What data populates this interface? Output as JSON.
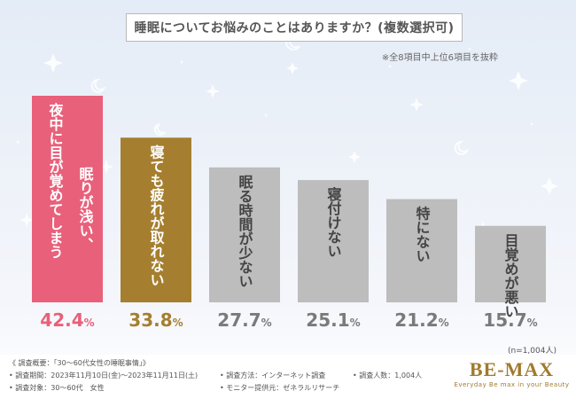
{
  "header": {
    "title": "睡眠についてお悩みのことはありますか？(複数選択可)",
    "subtitle": "※全8項目中上位6項目を抜粋"
  },
  "chart_data": {
    "type": "bar",
    "categories": [
      "夜中に目が覚めてしまう、眠りが浅い",
      "寝ても疲れが取れない",
      "眠る時間が少ない",
      "寝付けない",
      "特にない",
      "目覚めが悪い"
    ],
    "label_lines": [
      [
        "夜中に目が覚めてしまう",
        "眠りが浅い、"
      ],
      [
        "寝ても疲れが取れない"
      ],
      [
        "眠る時間が少ない"
      ],
      [
        "寝付けない"
      ],
      [
        "特にない"
      ],
      [
        "目覚めが悪い"
      ]
    ],
    "values": [
      42.4,
      33.8,
      27.7,
      25.1,
      21.2,
      15.7
    ],
    "unit": "%",
    "colors": [
      "#e9607a",
      "#a57f2f",
      "#bdbdbd",
      "#bdbdbd",
      "#bdbdbd",
      "#bdbdbd"
    ],
    "value_colors": [
      "#e9607a",
      "#a57f2f",
      "#7a7a7a",
      "#7a7a7a",
      "#7a7a7a",
      "#7a7a7a"
    ],
    "ylim": [
      0,
      42.4
    ]
  },
  "sample_note": "(n=1,004人)",
  "footer": {
    "overview": "《 調査概要：「30～60代女性の睡眠事情」》",
    "period": "• 調査期間：2023年11月10日(金)～2023年11月11日(土)",
    "target": "• 調査対象：30～60代　女性",
    "method": "• 調査方法：インターネット調査",
    "provider": "• モニター提供元：ゼネラルリサーチ",
    "respondents": "• 調査人数：1,004人"
  },
  "logo": {
    "main": "BE-MAX",
    "tagline": "Everyday Be max in your Beauty",
    "color": "#a07a2c"
  }
}
